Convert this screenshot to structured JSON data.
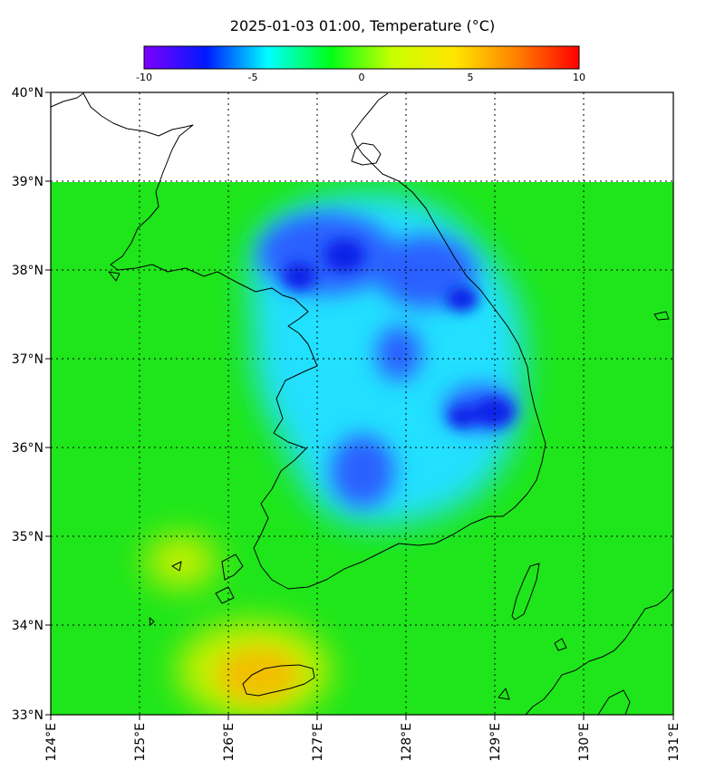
{
  "figure": {
    "title": "2025-01-03 01:00, Temperature (°C)"
  },
  "colorbar": {
    "ticks": [
      "-10",
      "-5",
      "0",
      "5",
      "10"
    ],
    "min": -10,
    "max": 10,
    "stops": [
      "#7e00ff",
      "#0019ff",
      "#00ffff",
      "#00ff19",
      "#c8ff00",
      "#ffe600",
      "#ff8000",
      "#ff0000"
    ]
  },
  "axes": {
    "lat_labels": [
      "40°N",
      "39°N",
      "38°N",
      "37°N",
      "36°N",
      "35°N",
      "34°N",
      "33°N"
    ],
    "lon_labels": [
      "124°E",
      "125°E",
      "126°E",
      "127°E",
      "128°E",
      "129°E",
      "130°E",
      "131°E"
    ],
    "lat_range": [
      33,
      40
    ],
    "lon_range": [
      124,
      131
    ],
    "data_lat_top": 39
  },
  "colors": {
    "field_base": "#1ee61a",
    "cold": "#1020e8",
    "cold_mid": "#2a60ff",
    "cool": "#20e0ff",
    "warm": "#f2c000",
    "warm_mid": "#c8f000",
    "coast": "#000000"
  }
}
